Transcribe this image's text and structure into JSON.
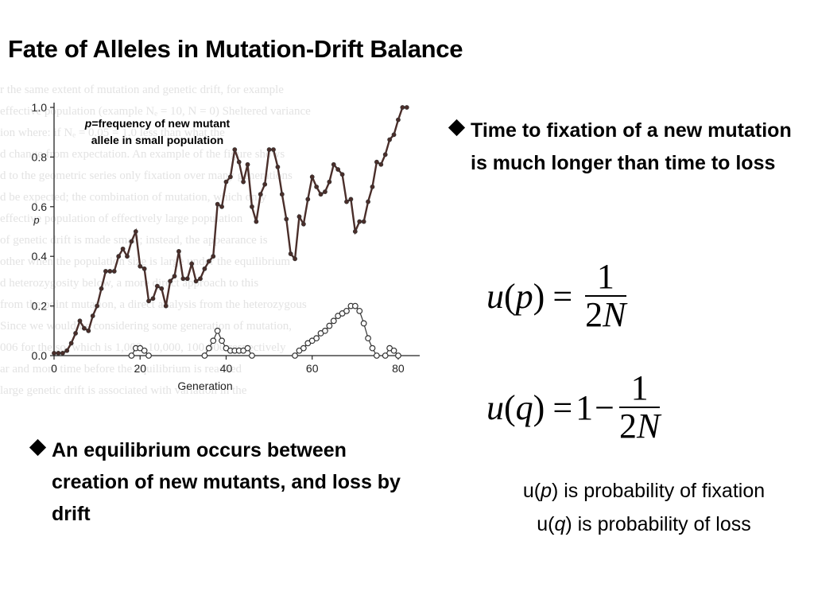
{
  "slide": {
    "title": "Fate of Alleles in Mutation-Drift Balance",
    "background_text": [
      "r the same extent of mutation and genetic drift, for example",
      "effective population (example Nₑ = 10, N = 0) Sheltered variance",
      "ion where: if Nₑ = 0.05 = 1.0 less than what the",
      "d change from expectation. An example of the figure shows",
      "d to the geometric series only fixation over many generations",
      "d be expected; the combination of mutation, which only",
      "effective population of effectively large population",
      "of genetic drift is made small; instead, the appearance is",
      "other when the population size is large under the equilibrium",
      "d heterozygosity below, a more direct approach to this",
      "from the point mutation, a direct analysis from the heterozygous",
      "Since we would be considering some generation of mutation,",
      "006 for the so, which is 1,000, 10,000, 100,000 respectively",
      "ar and more time before the equilibrium is reached",
      "large genetic drift is associated with variation in the"
    ]
  },
  "chart_data": {
    "type": "line",
    "title": "",
    "xlabel": "Generation",
    "ylabel": "p",
    "xlim": [
      0,
      85
    ],
    "ylim": [
      0,
      1.0
    ],
    "xticks": [
      0,
      20,
      40,
      60,
      80
    ],
    "yticks": [
      0,
      0.2,
      0.4,
      0.6,
      0.8,
      1.0
    ],
    "annotation": {
      "p_symbol": "p",
      "text": "=frequency of new mutant allele in small population"
    },
    "series": [
      {
        "style": "filled-circles",
        "x": [
          0,
          1,
          2,
          3,
          4,
          5,
          6,
          7,
          8,
          9,
          10,
          11,
          12,
          13,
          14,
          15,
          16,
          17,
          18,
          19,
          20,
          21,
          22,
          23,
          24,
          25,
          26,
          27,
          28,
          29,
          30,
          31,
          32,
          33,
          34,
          35,
          36,
          37,
          38,
          39,
          40,
          41,
          42,
          43,
          44,
          45,
          46,
          47,
          48,
          49,
          50,
          51,
          52,
          53,
          54,
          55,
          56,
          57,
          58,
          59,
          60,
          61,
          62,
          63,
          64,
          65,
          66,
          67,
          68,
          69,
          70,
          71,
          72,
          73,
          74,
          75,
          76,
          77,
          78,
          79,
          80,
          81,
          82
        ],
        "values": [
          0.01,
          0.01,
          0.01,
          0.02,
          0.05,
          0.09,
          0.14,
          0.11,
          0.1,
          0.16,
          0.2,
          0.27,
          0.34,
          0.34,
          0.34,
          0.4,
          0.43,
          0.4,
          0.46,
          0.5,
          0.36,
          0.35,
          0.22,
          0.23,
          0.28,
          0.27,
          0.2,
          0.3,
          0.32,
          0.42,
          0.31,
          0.31,
          0.37,
          0.3,
          0.31,
          0.35,
          0.38,
          0.4,
          0.61,
          0.6,
          0.7,
          0.72,
          0.83,
          0.78,
          0.7,
          0.77,
          0.6,
          0.54,
          0.65,
          0.69,
          0.83,
          0.83,
          0.76,
          0.65,
          0.55,
          0.41,
          0.39,
          0.56,
          0.53,
          0.63,
          0.72,
          0.68,
          0.65,
          0.66,
          0.7,
          0.77,
          0.75,
          0.73,
          0.62,
          0.63,
          0.5,
          0.54,
          0.54,
          0.62,
          0.68,
          0.78,
          0.77,
          0.81,
          0.87,
          0.89,
          0.95,
          1.0,
          1.0
        ]
      },
      {
        "style": "open-circles",
        "x": [
          18,
          19,
          20,
          21,
          22
        ],
        "values": [
          0.0,
          0.03,
          0.03,
          0.02,
          0.0
        ]
      },
      {
        "style": "open-circles",
        "x": [
          35,
          36,
          37,
          38,
          39,
          40,
          41,
          42,
          43,
          44,
          45,
          46
        ],
        "values": [
          0.0,
          0.03,
          0.06,
          0.1,
          0.06,
          0.03,
          0.02,
          0.02,
          0.02,
          0.02,
          0.03,
          0.0
        ]
      },
      {
        "style": "open-circles",
        "x": [
          56,
          57,
          58,
          59,
          60,
          61,
          62,
          63,
          64,
          65,
          66,
          67,
          68,
          69,
          70,
          71,
          72,
          73,
          74,
          75
        ],
        "values": [
          0.0,
          0.02,
          0.03,
          0.05,
          0.06,
          0.07,
          0.09,
          0.1,
          0.12,
          0.14,
          0.16,
          0.17,
          0.18,
          0.2,
          0.2,
          0.18,
          0.13,
          0.07,
          0.03,
          0.0
        ]
      },
      {
        "style": "open-circles",
        "x": [
          77,
          78,
          79,
          80
        ],
        "values": [
          0.0,
          0.03,
          0.02,
          0.0
        ]
      }
    ]
  },
  "bullets": {
    "right": "Time to fixation of a new mutation is much longer than time to loss",
    "left": "An equilibrium occurs between creation of new mutants, and loss by drift"
  },
  "formulas": {
    "p": {
      "lhs_func": "u",
      "lhs_var": "p",
      "numerator": "1",
      "denominator_coef": "2",
      "denominator_var": "N"
    },
    "q": {
      "lhs_func": "u",
      "lhs_var": "q",
      "rhs_const": "1",
      "minus": "−",
      "numerator": "1",
      "denominator_coef": "2",
      "denominator_var": "N"
    }
  },
  "definitions": {
    "fixation": {
      "prefix": "u(",
      "var": "p",
      "suffix": ") is probability of fixation"
    },
    "loss": {
      "prefix": "u(",
      "var": "q",
      "suffix": ") is probability of loss"
    }
  }
}
